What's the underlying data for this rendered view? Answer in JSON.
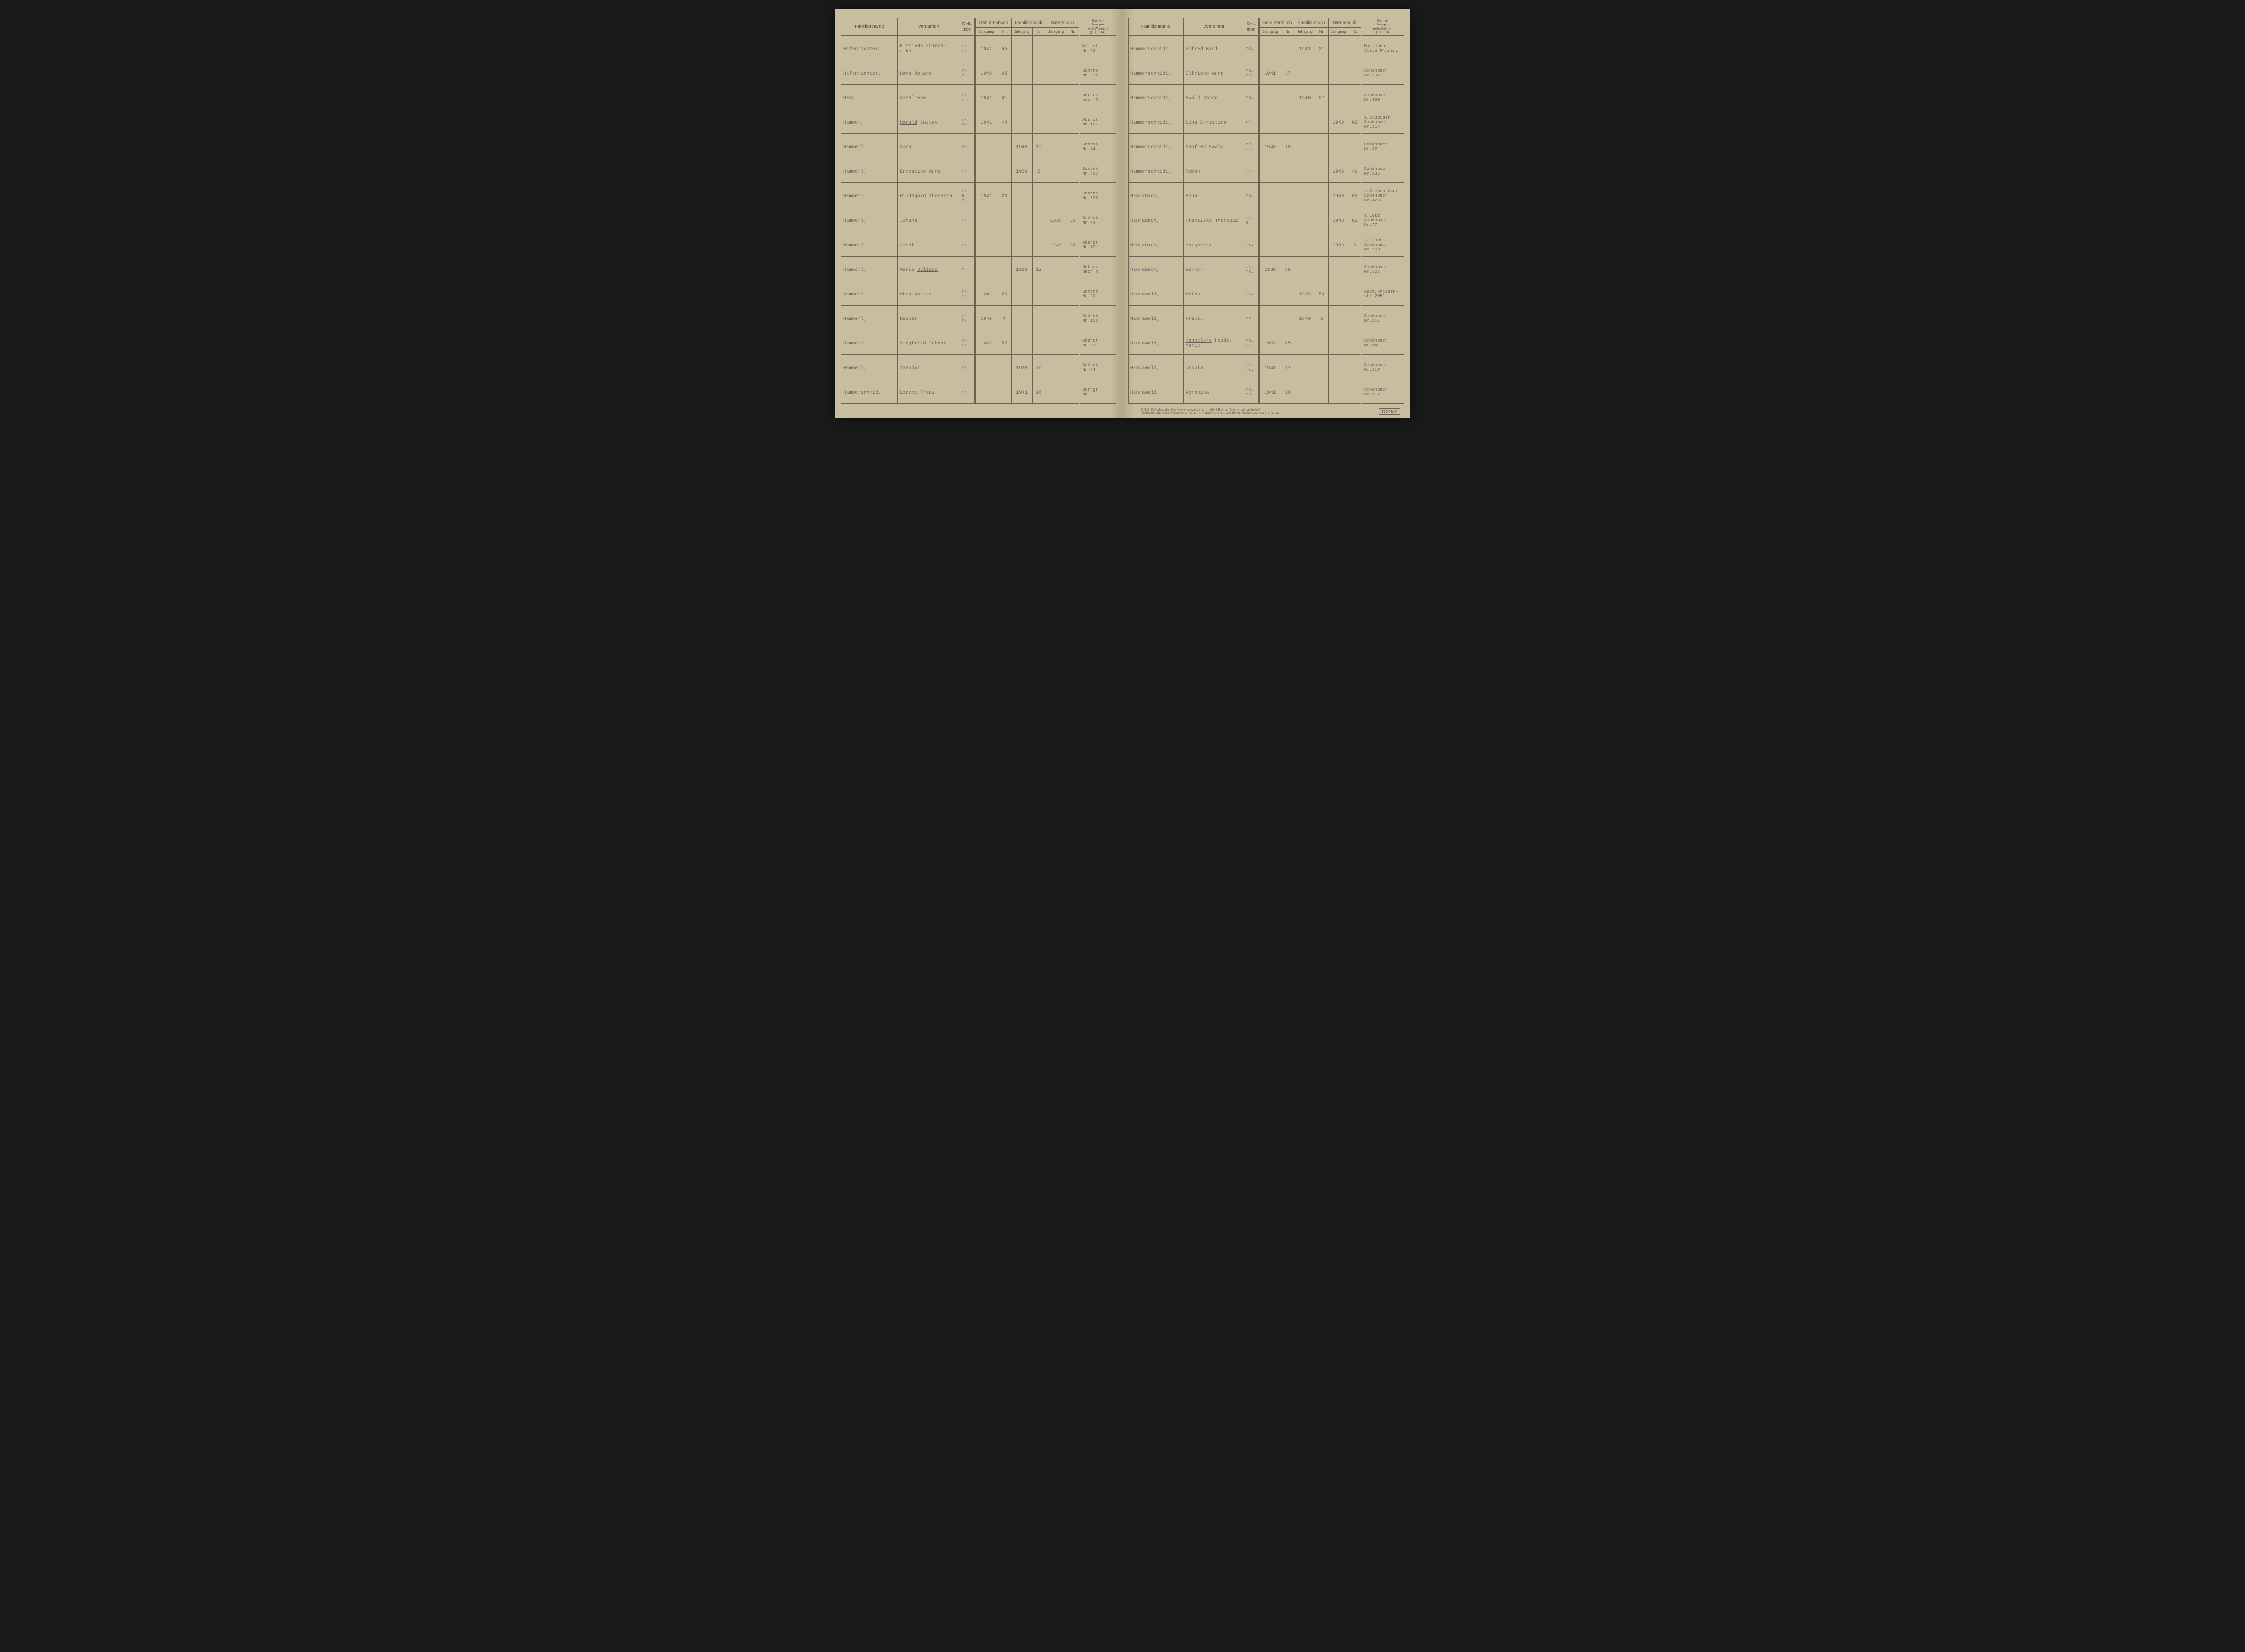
{
  "headers": {
    "familienname": "Familienname",
    "vornamen": "Vornamen",
    "religion": "Reli-\ngion",
    "geburtenbuch": "Geburtenbuch",
    "familienbuch": "Familienbuch",
    "sterbebuch": "Sterbebuch",
    "bemerkungen": "Bemer-\nkungen\nevtl.Wohnort\n(§ 88, DA.)",
    "jahrgang": "Jahrgang",
    "nr": "Nr."
  },
  "left_rows": [
    {
      "fam": "Hafenrichter,",
      "vor": "Elfriede Friede-rike",
      "vor_u": "Elfriede",
      "rel": "rk.\nrk.",
      "gj": "1942",
      "gn": "55",
      "fj": "",
      "fn": "",
      "sj": "",
      "sn": "",
      "bem": "Wildst\nNr.73"
    },
    {
      "fam": "Hafenrichter,",
      "vor": "Hans Roland",
      "vor_u": "Roland",
      "rel": "rk.\nrk.",
      "gj": "1940",
      "gn": "65",
      "fj": "",
      "fn": "",
      "sj": "",
      "sn": "",
      "bem": "Schönb\nNr.676"
    },
    {
      "fam": "Hahn,",
      "vor": "Anneliese",
      "rel": "rk.\nrk.",
      "gj": "1941",
      "gn": "51",
      "fj": "",
      "fn": "",
      "sj": "",
      "sn": "",
      "bem": "Unters\nbach N"
    },
    {
      "fam": "Hammer,",
      "vor": "Harald Gustav",
      "vor_u": "Harald",
      "rel": "rk.\nrk.",
      "gj": "1941",
      "gn": "44",
      "fj": "",
      "fn": "",
      "sj": "",
      "sn": "",
      "bem": "Absrot\nNr.104"
    },
    {
      "fam": "Hammerl,",
      "vor": "Anna",
      "rel": "rk.",
      "gj": "",
      "gn": "",
      "fj": "1940",
      "fn": "12",
      "sj": "",
      "sn": "",
      "bem": "Schönb\nNr.44"
    },
    {
      "fam": "Hammerl,",
      "vor": "Ernestine Anna",
      "rel": "rk.",
      "gj": "",
      "gn": "",
      "fj": "1939",
      "fn": "6",
      "sj": "",
      "sn": "",
      "bem": "Schönb\nNr.413"
    },
    {
      "fam": "Hammerl,",
      "vor": "Hildegard Theresia",
      "vor_u": "Hildegard",
      "rel": "rk.\na\nrk.",
      "gj": "1941",
      "gn": "23",
      "fj": "",
      "fn": "",
      "sj": "",
      "sn": "",
      "bem": "Schönb\nNr.520"
    },
    {
      "fam": "Hammerl,",
      "vor": "Johann",
      "rel": "rk.",
      "gj": "",
      "gn": "",
      "fj": "",
      "fn": "",
      "sj": "1939",
      "sn": "30",
      "bem": "Schönb\nNr.44"
    },
    {
      "fam": "Hammerl,",
      "vor": "Josef",
      "rel": "rk.",
      "gj": "",
      "gn": "",
      "fj": "",
      "fn": "",
      "sj": "1942",
      "sn": "20",
      "bem": "Absrot\nNr.12"
    },
    {
      "fam": "Hammerl,",
      "vor": "Maria Juliana",
      "vor_u": "Juliana",
      "rel": "rk.",
      "gj": "",
      "gn": "",
      "fj": "1939",
      "fn": "12",
      "sj": "",
      "sn": "",
      "bem": "Unters\nbach N"
    },
    {
      "fam": "Hammerl,",
      "vor": "Otto Walter",
      "vor_u": "Walter",
      "rel": "rk.\nrk.",
      "gj": "1941",
      "gn": "26",
      "fj": "",
      "fn": "",
      "sj": "",
      "sn": "",
      "bem": "Schönb\nNr.20"
    },
    {
      "fam": "Hammerl,",
      "vor": "Reiner",
      "rel": "rk.\nrk.",
      "gj": "1940",
      "gn": "4",
      "fj": "",
      "fn": "",
      "sj": "",
      "sn": "",
      "bem": "Schönb\nNr.150"
    },
    {
      "fam": "Hammerl,",
      "vor": "Siegfried Johann",
      "vor_u": "Siegfried",
      "rel": "rk.\nrk.",
      "gj": "1943",
      "gn": "52",
      "fj": "",
      "fn": "",
      "sj": "",
      "sn": "",
      "bem": "Absrot\nNr.23"
    },
    {
      "fam": "Hammerl,",
      "vor": "Theodor",
      "rel": "rk.",
      "gj": "",
      "gn": "",
      "fj": "1939",
      "fn": "75",
      "sj": "",
      "sn": "",
      "bem": "Schönb\nNr.44"
    },
    {
      "fam": "Hammerschmid,",
      "vor": "Lorenz Franz",
      "rel": "rk.",
      "gj": "",
      "gn": "",
      "fj": "1941",
      "fn": "26",
      "sj": "",
      "sn": "",
      "bem": "Dürngr\nNr.8"
    }
  ],
  "right_rows": [
    {
      "fam": "Hammerschmidt,",
      "vor": "Alfred Karl",
      "rel": "rk.",
      "gj": "",
      "gn": "",
      "fj": "1941",
      "fn": "21",
      "sj": "",
      "sn": "",
      "bem": "Marienbad\nVilla Florenz"
    },
    {
      "fam": "Hammerschmidt,",
      "vor": "Elfriede Anna",
      "vor_u": "Elfriede",
      "rel": "rk.\nrk.",
      "gj": "1941",
      "gn": "37",
      "fj": "",
      "fn": "",
      "sj": "",
      "sn": "",
      "bem": "Schönbach\nNr.137"
    },
    {
      "fam": "Hammerschmidt,",
      "vor": "Ewald Anton",
      "rel": "rk.",
      "gj": "",
      "gn": "",
      "fj": "1940",
      "fn": "57",
      "sj": "",
      "sn": "",
      "bem": "Schönbach\nNr.490"
    },
    {
      "fam": "Hammerschmidt,",
      "vor": "Lina Christina",
      "rel": "el.",
      "gj": "",
      "gn": "",
      "fj": "",
      "fn": "",
      "sj": "1940",
      "sn": "66",
      "bem": "s.Stübiger\nSchönbach\nNr.214"
    },
    {
      "fam": "Hammerschmidt,",
      "vor": "Manfred Ewald",
      "vor_u": "Manfred",
      "rel": "rk.\nrk.",
      "gj": "1943",
      "gn": "13",
      "fj": "",
      "fn": "",
      "sj": "",
      "sn": "",
      "bem": "Schönbach\nNr.32"
    },
    {
      "fam": "Hammerschmidt,",
      "vor": "Roman",
      "rel": "rk.",
      "gj": "",
      "gn": "",
      "fj": "",
      "fn": "",
      "sj": "1943",
      "sn": "49",
      "bem": "Schönbach\nNr.235"
    },
    {
      "fam": "Hannabach,",
      "vor": "Anna",
      "rel": "rk.",
      "gj": "",
      "gn": "",
      "fj": "",
      "fn": "",
      "sj": "1940",
      "sn": "65",
      "bem": "s.Siebenhüner\nSchönbach\nNr.423"
    },
    {
      "fam": "Hannabach,",
      "vor": "Franziska Theresia",
      "rel": "rk.\na",
      "gj": "",
      "gn": "",
      "fj": "",
      "fn": "",
      "sj": "1943",
      "sn": "82",
      "bem": "s.Lutz\nSchönbach\nNr.77"
    },
    {
      "fam": "Hannabach,",
      "vor": "Margareta",
      "rel": "rk.",
      "gj": "",
      "gn": "",
      "fj": "",
      "fn": "",
      "sj": "1939",
      "sn": "9",
      "bem": "s. Loos\nSchönbach\nNr.163"
    },
    {
      "fam": "Hannabach,",
      "vor": "Werner",
      "rel": "rk.\nrk.",
      "gj": "1939",
      "gn": "68",
      "fj": "",
      "fn": "",
      "sj": "",
      "sn": "",
      "bem": "Schönbach\nNr.527"
    },
    {
      "fam": "Hannawald,",
      "vor": "Anton",
      "rel": "rk.",
      "gj": "",
      "gn": "",
      "fj": "1939",
      "fn": "54",
      "sj": "",
      "sn": "",
      "bem": "Asch,Friesen-\nstr.2051"
    },
    {
      "fam": "Hannawald,",
      "vor": "Franz,",
      "rel": "rk.",
      "gj": "",
      "gn": "",
      "fj": "1940",
      "fn": "5",
      "sj": "",
      "sn": "",
      "bem": "Schönbach\nNr.217"
    },
    {
      "fam": "Hannawald,",
      "vor": "Hannelore Heide-Marie",
      "vor_u": "Hannelore",
      "rel": "rk.\nrk.",
      "gj": "1942",
      "gn": "65",
      "fj": "",
      "fn": "",
      "sj": "",
      "sn": "",
      "bem": "Schönbach\nNr.541"
    },
    {
      "fam": "Hannawald,",
      "vor": "Ursula",
      "rel": "rk.\nrk.",
      "gj": "1943",
      "gn": "17",
      "fj": "",
      "fn": "",
      "sj": "",
      "sn": "",
      "bem": "Schönbach\nNr.217"
    },
    {
      "fam": "Hannawald,",
      "vor": "Veronika",
      "rel": "rk.\nrk.",
      "gj": "1941",
      "gn": "10",
      "fj": "",
      "fn": "",
      "sj": "",
      "sn": "",
      "bem": "Schönbach\nNr.217"
    }
  ],
  "footer": {
    "line1": "D 315 E.  Alphabetisches Namenverzeichnis für alle 3 Bücher.  Nachdruck verboten!",
    "line2": "Verlag für Standesamtswesen G. m. b. H. in Berlin SW 61, Gitschiner Straße 109.   C/2775  (a. 15)",
    "code": "D 315 E"
  }
}
